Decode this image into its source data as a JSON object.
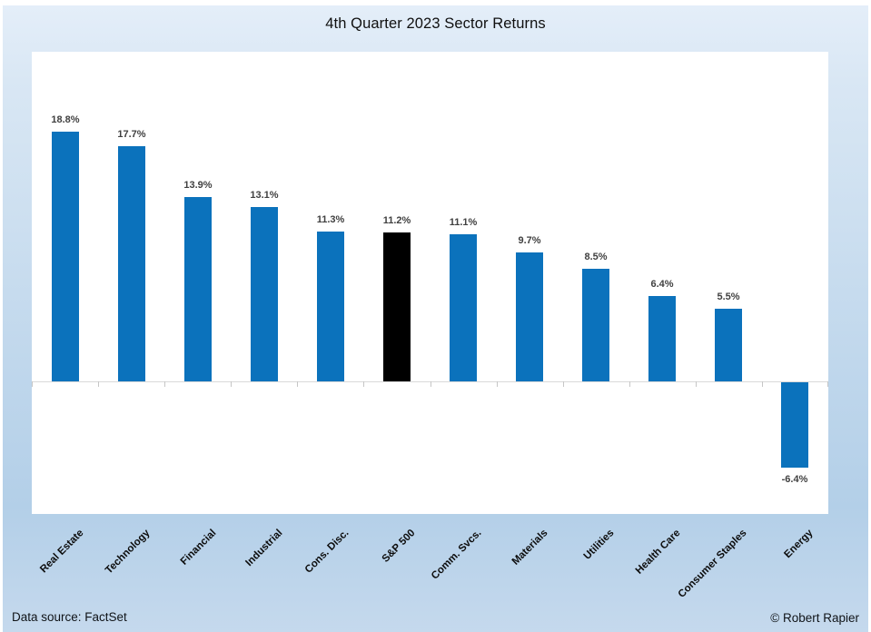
{
  "title": "4th Quarter 2023 Sector Returns",
  "footer": {
    "data_source": "Data source: FactSet",
    "credit": "© Robert Rapier"
  },
  "style": {
    "bar_color": "#0b72bc",
    "highlight_color": "#000000",
    "axis_line_color": "#d9d9d9",
    "value_label_color": "#404040",
    "background_top": "#e4eef9",
    "background_bottom": "#b3cfe8"
  },
  "chart_data": {
    "type": "bar",
    "title": "4th Quarter 2023 Sector Returns",
    "categories": [
      "Real Estate",
      "Technology",
      "Financial",
      "Industrial",
      "Cons. Disc.",
      "S&P 500",
      "Comm. Svcs.",
      "Materials",
      "Utilities",
      "Health Care",
      "Consumer Staples",
      "Energy"
    ],
    "values": [
      18.8,
      17.7,
      13.9,
      13.1,
      11.3,
      11.2,
      11.1,
      9.7,
      8.5,
      6.4,
      5.5,
      -6.4
    ],
    "data_labels": [
      "18.8%",
      "17.7%",
      "13.9%",
      "13.1%",
      "11.3%",
      "11.2%",
      "11.1%",
      "9.7%",
      "8.5%",
      "6.4%",
      "5.5%",
      "-6.4%"
    ],
    "series_color": "#0b72bc",
    "highlight_index": 5,
    "highlight_color": "#000000",
    "xlabel": "",
    "ylabel": "",
    "ylim": [
      -10,
      22
    ],
    "grid": false,
    "legend_position": "none",
    "x_tick_rotation": 45,
    "annotations": []
  }
}
